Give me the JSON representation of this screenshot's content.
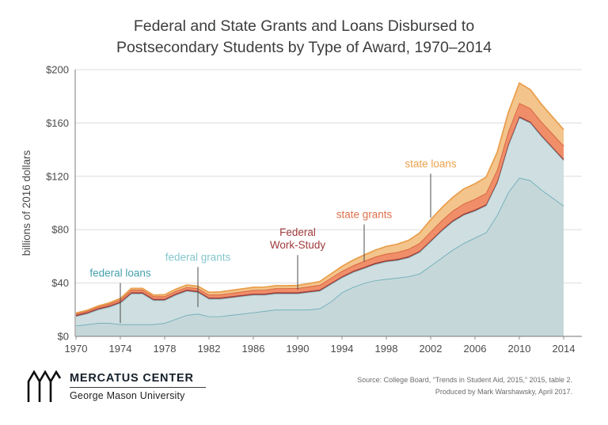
{
  "title": {
    "line1": "Federal and State Grants and Loans Disbursed to",
    "line2": "Postsecondary Students by Type of Award, 1970–2014"
  },
  "footer": {
    "org_name": "MERCATUS CENTER",
    "org_sub": "George Mason University",
    "source_line1": "Source: College Board, “Trends in Student Aid, 2015,” 2015, table 2.",
    "source_line2": "Produced by Mark Warshawsky, April 2017."
  },
  "chart_data": {
    "type": "area",
    "stacked": true,
    "title": "Federal and State Grants and Loans Disbursed to Postsecondary Students by Type of Award, 1970–2014",
    "xlabel": "",
    "ylabel": "billions of 2016 dollars",
    "ylim": [
      0,
      200
    ],
    "yticks": [
      0,
      40,
      80,
      120,
      160,
      200
    ],
    "ytick_labels": [
      "$0",
      "$40",
      "$80",
      "$120",
      "$160",
      "$200"
    ],
    "xticks": [
      1970,
      1974,
      1978,
      1982,
      1986,
      1990,
      1994,
      1998,
      2002,
      2006,
      2010,
      2014
    ],
    "grid": true,
    "legend_position": "inline-annotations",
    "axis_color": "#8f8f8f",
    "grid_color": "#dcdcdc",
    "annotation_line_color": "#4d4d4d",
    "x": [
      1970,
      1971,
      1972,
      1973,
      1974,
      1975,
      1976,
      1977,
      1978,
      1979,
      1980,
      1981,
      1982,
      1983,
      1984,
      1985,
      1986,
      1987,
      1988,
      1989,
      1990,
      1991,
      1992,
      1993,
      1994,
      1995,
      1996,
      1997,
      1998,
      1999,
      2000,
      2001,
      2002,
      2003,
      2004,
      2005,
      2006,
      2007,
      2008,
      2009,
      2010,
      2011,
      2012,
      2013,
      2014
    ],
    "series": [
      {
        "name": "federal loans",
        "fill": "#c6d7d9",
        "stroke": "#68acb8",
        "values": [
          8,
          9,
          10,
          10,
          9,
          9,
          9,
          9,
          10,
          13,
          16,
          17,
          15,
          15,
          16,
          17,
          18,
          19,
          20,
          20,
          20,
          20,
          21,
          26,
          33,
          37,
          40,
          42,
          43,
          44,
          45,
          47,
          53,
          59,
          65,
          70,
          74,
          78,
          91,
          108,
          119,
          117,
          110,
          104,
          98
        ]
      },
      {
        "name": "federal grants",
        "fill": "#cfdee0",
        "stroke": "#8bcbd2",
        "values": [
          7,
          8,
          10,
          12,
          16,
          23,
          23,
          18,
          17,
          18,
          18,
          16,
          13,
          13,
          13,
          13,
          13,
          12,
          12,
          12,
          12,
          13,
          13,
          13,
          11,
          11,
          11,
          12,
          13,
          13,
          14,
          16,
          18,
          20,
          21,
          21,
          20,
          20,
          24,
          35,
          45,
          43,
          40,
          37,
          34
        ]
      },
      {
        "name": "Federal Work-Study",
        "fill": "#a84744",
        "stroke": "#943a3a",
        "values": [
          1,
          1,
          1,
          1,
          1,
          1,
          1,
          1,
          1,
          1,
          1,
          1,
          1,
          1,
          1,
          1,
          1,
          1,
          1,
          1,
          1,
          1,
          1,
          1,
          1,
          1,
          1,
          1,
          1,
          1,
          1,
          1,
          1,
          1,
          1,
          1,
          1,
          1,
          1,
          1,
          1,
          1,
          1,
          1,
          1
        ]
      },
      {
        "name": "state grants",
        "fill": "#ef8e68",
        "stroke": "#d55f3b",
        "values": [
          1,
          1,
          1.2,
          1.4,
          1.6,
          2,
          2,
          2,
          2,
          2,
          2,
          2,
          2.2,
          2.4,
          2.5,
          2.6,
          2.8,
          2.9,
          3,
          3,
          3.2,
          3.4,
          3.6,
          3.8,
          4,
          4.2,
          4.5,
          4.7,
          5,
          5.2,
          5.5,
          6,
          6.5,
          7,
          7.3,
          7.6,
          8,
          8.4,
          9,
          9.6,
          10,
          10,
          10,
          10,
          10
        ]
      },
      {
        "name": "state loans",
        "fill": "#f3c48b",
        "stroke": "#e99d4a",
        "values": [
          0.5,
          0.5,
          0.6,
          0.7,
          0.8,
          1,
          1,
          1,
          1.2,
          1.4,
          1.5,
          1.6,
          1.8,
          1.9,
          2,
          2,
          2,
          2,
          2,
          2,
          2,
          2.2,
          2.5,
          3,
          3.5,
          4,
          4.5,
          5,
          5.5,
          6,
          6.5,
          7.5,
          9,
          9.5,
          10,
          11,
          11.5,
          12,
          13,
          14,
          15,
          14,
          13,
          12.5,
          12
        ]
      }
    ],
    "annotations": [
      {
        "text": "federal loans",
        "color": "#47a1ae",
        "year": 1974,
        "line_from": 40,
        "line_to": 10
      },
      {
        "text": "federal grants",
        "color": "#85c7ce",
        "year": 1981,
        "line_from": 52,
        "line_to": 22
      },
      {
        "text": "Federal\nWork-Study",
        "color": "#a13a3c",
        "year": 1990,
        "line_from": 61,
        "line_to": 35
      },
      {
        "text": "state grants",
        "color": "#e0704c",
        "year": 1996,
        "line_from": 84,
        "line_to": 56
      },
      {
        "text": "state loans",
        "color": "#eba24d",
        "year": 2002,
        "line_from": 122,
        "line_to": 89
      }
    ]
  }
}
